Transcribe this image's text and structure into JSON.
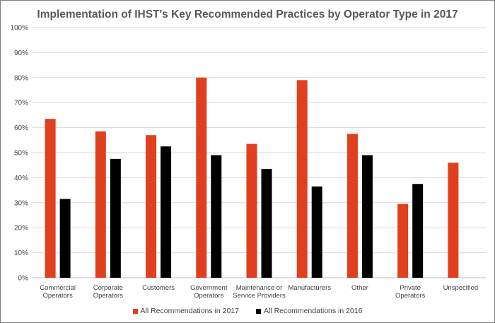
{
  "chart_data": {
    "type": "bar",
    "title": "Implementation of IHST's Key Recommended Practices by Operator Type in 2017",
    "categories": [
      [
        "Commercial",
        "Operators"
      ],
      [
        "Corporate",
        "Operators"
      ],
      [
        "Customers"
      ],
      [
        "Government",
        "Operators"
      ],
      [
        "Maintenance or",
        "Service Providers"
      ],
      [
        "Manufacturers"
      ],
      [
        "Other"
      ],
      [
        "Private",
        "Operators"
      ],
      [
        "Unspecified"
      ]
    ],
    "series": [
      {
        "name": "All Recommendations in 2017",
        "color": "#e0401e",
        "values": [
          63.5,
          58.5,
          57,
          80,
          53.5,
          79,
          57.5,
          29.5,
          46
        ]
      },
      {
        "name": "All Recommendations in 2016",
        "color": "#000000",
        "values": [
          31.5,
          47.5,
          52.5,
          49,
          43.5,
          36.5,
          49,
          37.5,
          null
        ]
      }
    ],
    "ylim": [
      0,
      100
    ],
    "yticks": [
      0,
      10,
      20,
      30,
      40,
      50,
      60,
      70,
      80,
      90,
      100
    ],
    "ytick_suffix": "%",
    "grid": true,
    "legend_position": "bottom"
  }
}
